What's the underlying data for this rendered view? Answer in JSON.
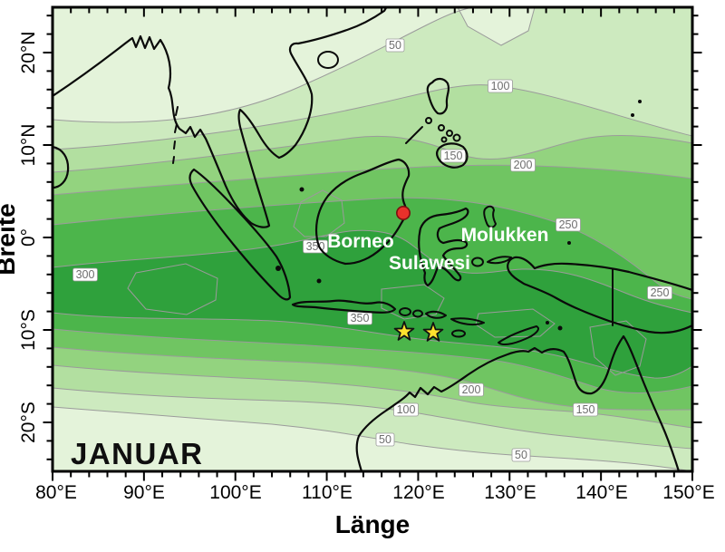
{
  "figure": {
    "month": "JANUAR"
  },
  "axes": {
    "x": {
      "title": "Länge",
      "ticks": [
        "80°E",
        "90°E",
        "100°E",
        "110°E",
        "120°E",
        "130°E",
        "140°E",
        "150°E"
      ]
    },
    "y": {
      "title": "Breite",
      "ticks": [
        "20°N",
        "10°N",
        "0°",
        "10°S",
        "20°S"
      ]
    }
  },
  "map": {
    "region_labels": [
      "Borneo",
      "Sulawesi",
      "Molukken"
    ],
    "contour_chips": [
      "50",
      "100",
      "150",
      "200",
      "250",
      "350",
      "300",
      "350",
      "250",
      "200",
      "100",
      "150",
      "50",
      "50"
    ],
    "contour_levels_labeled": [
      50,
      100,
      150,
      200,
      250,
      300,
      350
    ]
  },
  "markers": {
    "red_dot": {
      "color": "#e8312b",
      "outline": "#7c1010"
    },
    "stars": {
      "color": "#ffe12e",
      "outline": "#111111",
      "count": 2
    }
  },
  "palette": {
    "b1": "#e4f3da",
    "b2": "#cdeabf",
    "b3": "#b2dfa0",
    "b4": "#93d37f",
    "b5": "#70c562",
    "b6": "#4cb54b",
    "b7": "#2fa13c",
    "b8": "#1f7c2f",
    "contour_line": "#9b9b9b",
    "coastline": "#0a0a0a"
  }
}
